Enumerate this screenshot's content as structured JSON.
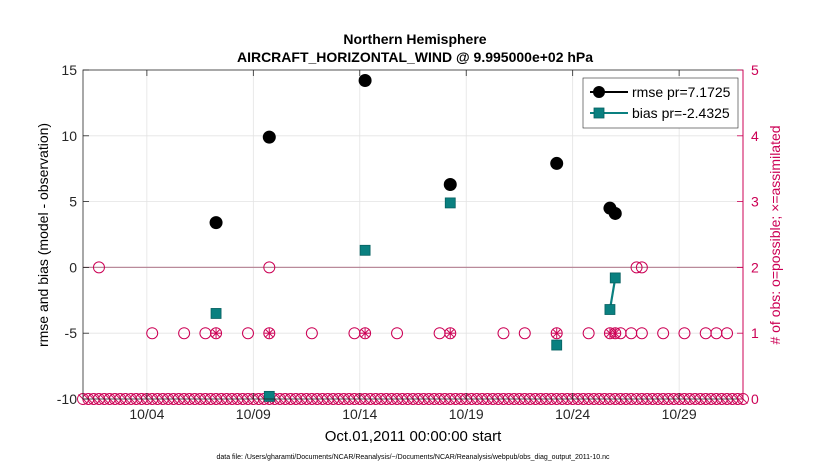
{
  "chart_data": {
    "type": "scatter",
    "title": "Northern Hemisphere",
    "subtitle": "AIRCRAFT_HORIZONTAL_WIND @ 9.995000e+02 hPa",
    "xlabel": "Oct.01,2011 00:00:00 start",
    "ylabel_left": "rmse and bias (model - observation)",
    "ylabel_right": "# of obs: o=possible; ×=assimilated",
    "footnote": "data file: /Users/gharamti/Documents/NCAR/Reanalysis/~/Documents/NCAR/Reanalysis/webpub/obs_diag_output_2011-10.nc",
    "xlim": [
      0,
      31
    ],
    "ylim_left": [
      -10,
      15
    ],
    "ylim_right": [
      0,
      5
    ],
    "x_ticks": [
      3,
      8,
      13,
      18,
      23,
      28
    ],
    "x_tick_labels": [
      "10/04",
      "10/09",
      "10/14",
      "10/19",
      "10/24",
      "10/29"
    ],
    "y_ticks_left": [
      -10,
      -5,
      0,
      5,
      10,
      15
    ],
    "y_tick_labels_left": [
      "-10",
      "-5",
      "0",
      "5",
      "10",
      "15"
    ],
    "y_ticks_right": [
      0,
      1,
      2,
      3,
      4,
      5
    ],
    "y_tick_labels_right": [
      "0",
      "1",
      "2",
      "3",
      "4",
      "5"
    ],
    "grid": true,
    "legend_position": "top-right",
    "series": [
      {
        "name": "rmse",
        "legend_label": "rmse pr=7.1725",
        "color": "#000000",
        "marker": "circle",
        "axis": "left",
        "points": [
          [
            6.25,
            3.4
          ],
          [
            8.75,
            9.9
          ],
          [
            13.25,
            14.2
          ],
          [
            17.25,
            6.3
          ],
          [
            22.25,
            7.9
          ],
          [
            24.75,
            4.5
          ],
          [
            25.0,
            4.1
          ]
        ]
      },
      {
        "name": "bias",
        "legend_label": "bias pr=-2.4325",
        "color": "#0a8080",
        "marker": "square",
        "axis": "left",
        "points": [
          [
            6.25,
            -3.5
          ],
          [
            8.75,
            -9.8
          ],
          [
            13.25,
            1.3
          ],
          [
            17.25,
            4.9
          ],
          [
            22.25,
            -5.9
          ],
          [
            24.75,
            -3.2
          ],
          [
            25.0,
            -0.8
          ]
        ],
        "connected_segments": [
          [
            [
              24.75,
              -3.2
            ],
            [
              25.0,
              -0.8
            ]
          ]
        ]
      },
      {
        "name": "obs possible",
        "color": "#cc0055",
        "marker": "open-circle",
        "axis": "right",
        "points": [
          [
            0.75,
            2
          ],
          [
            3.25,
            1
          ],
          [
            4.75,
            1
          ],
          [
            5.75,
            1
          ],
          [
            6.25,
            1
          ],
          [
            7.75,
            1
          ],
          [
            8.75,
            2
          ],
          [
            8.75,
            1
          ],
          [
            10.75,
            1
          ],
          [
            12.75,
            1
          ],
          [
            13.25,
            1
          ],
          [
            14.75,
            1
          ],
          [
            16.75,
            1
          ],
          [
            17.25,
            1
          ],
          [
            19.75,
            1
          ],
          [
            20.75,
            1
          ],
          [
            22.25,
            1
          ],
          [
            23.75,
            1
          ],
          [
            24.75,
            1
          ],
          [
            25.0,
            1
          ],
          [
            25.25,
            1
          ],
          [
            25.75,
            1
          ],
          [
            26.0,
            2
          ],
          [
            26.25,
            2
          ],
          [
            26.25,
            1
          ],
          [
            27.25,
            1
          ],
          [
            28.25,
            1
          ],
          [
            29.25,
            1
          ],
          [
            29.75,
            1
          ],
          [
            30.25,
            1
          ]
        ]
      },
      {
        "name": "obs assimilated",
        "color": "#cc0055",
        "marker": "asterisk",
        "axis": "right",
        "points": [
          [
            6.25,
            1
          ],
          [
            8.75,
            1
          ],
          [
            13.25,
            1
          ],
          [
            17.25,
            1
          ],
          [
            22.25,
            1
          ],
          [
            24.75,
            1
          ],
          [
            25.0,
            1
          ]
        ]
      }
    ],
    "baseline_zero": 0
  }
}
